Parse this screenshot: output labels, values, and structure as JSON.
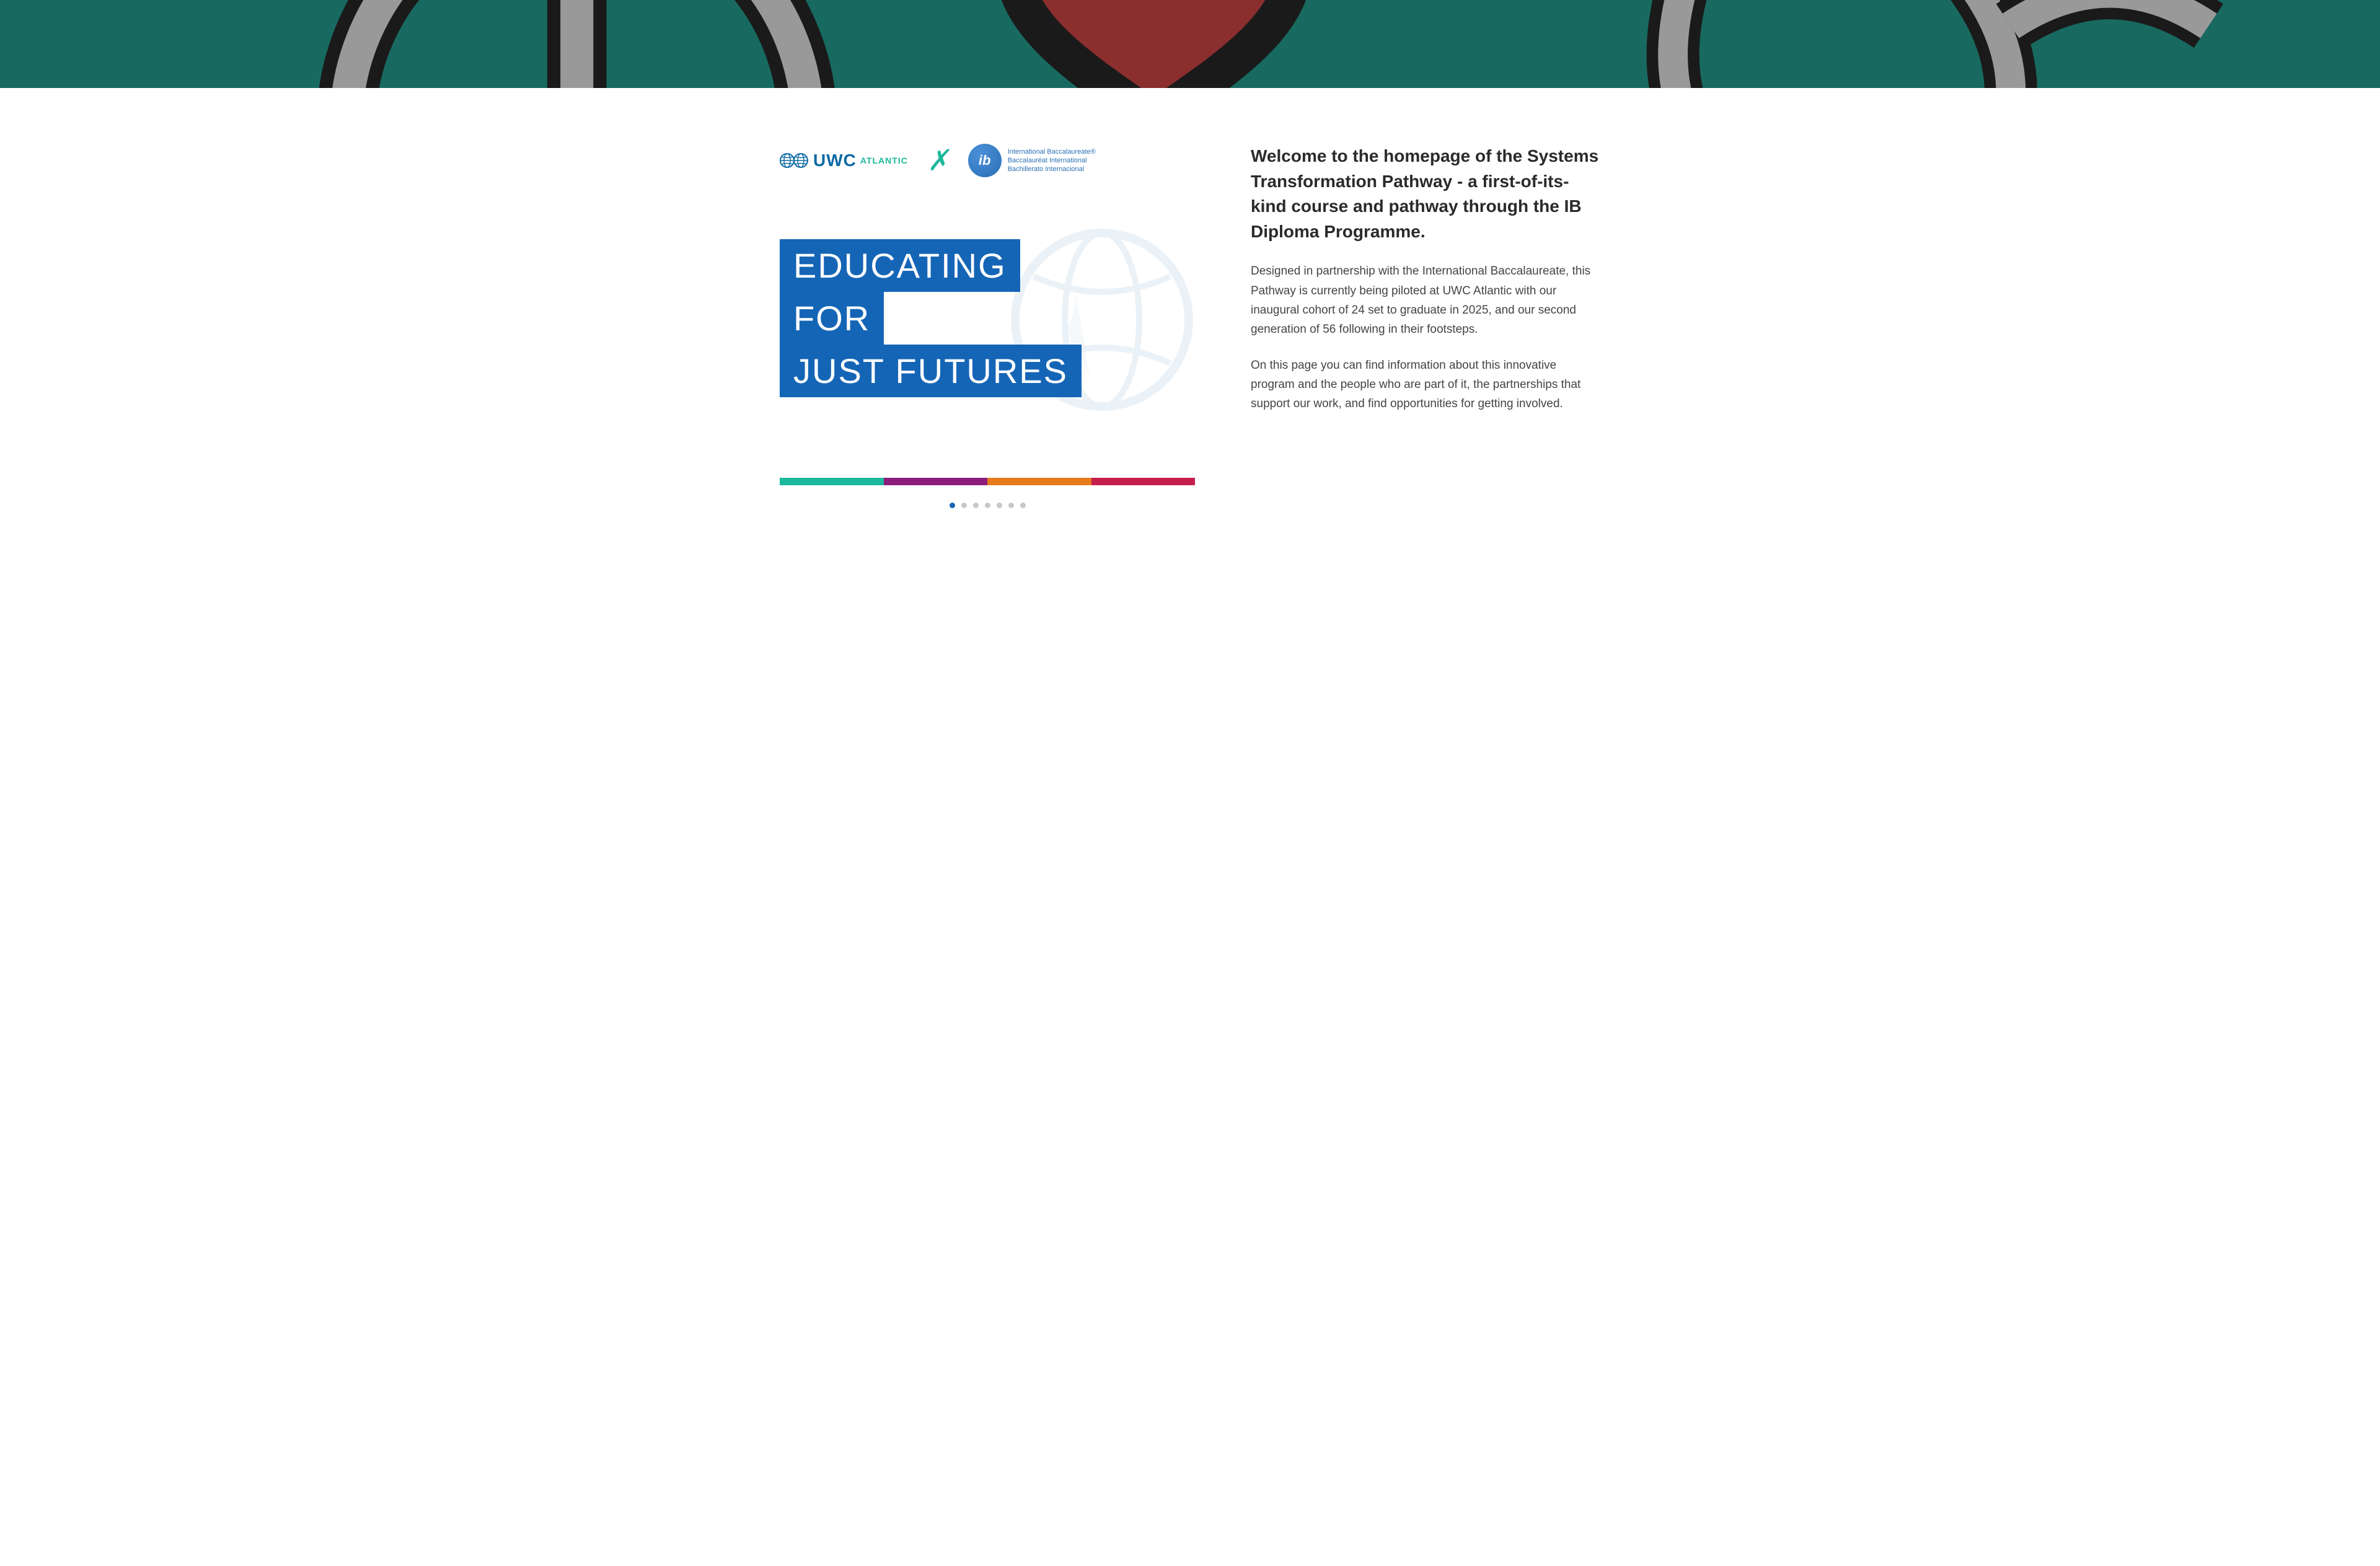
{
  "banner": {
    "bg_color": "#186a60",
    "stroke_dark": "#1a1a1a",
    "stroke_grey": "#999999",
    "heart_fill": "#8b2e2e"
  },
  "logos": {
    "uwc_globe_color": "#0d6aa5",
    "uwc_text": "UWC",
    "uwc_sub": "ATLANTIC",
    "uwc_text_color": "#0d6aa5",
    "uwc_sub_color": "#1bb89c",
    "x_color": "#1bb89c",
    "x_glyph": "✗",
    "ib_glyph": "ib",
    "ib_line1": "International Baccalaureate®",
    "ib_line2": "Baccalauréat International",
    "ib_line3": "Bachillerato Internacional",
    "ib_color": "#2a6fb5"
  },
  "headline": {
    "lines": [
      "EDUCATING",
      "FOR",
      "JUST FUTURES"
    ],
    "bg_color": "#1565b6",
    "text_color": "#ffffff",
    "fontsize": 56
  },
  "color_bar": [
    "#1bb89c",
    "#8a1e7a",
    "#e77a1c",
    "#c41e4a"
  ],
  "carousel": {
    "count": 7,
    "active_index": 0,
    "active_color": "#1565b6",
    "inactive_color": "#c8c8c8"
  },
  "intro": {
    "heading": "Welcome to the homepage of the Systems Transformation Pathway - a first-of-its-kind course and pathway through the IB Diploma Programme.",
    "para1": "Designed in partnership with the International Baccalaureate, this Pathway is currently being piloted at UWC Atlantic with our inaugural cohort of 24 set to graduate in 2025, and our second generation of 56 following in their footsteps.",
    "para2": "On this page you can find information about this innovative program and the people who are part of it, the partnerships that support our work, and find opportunities for getting involved."
  }
}
